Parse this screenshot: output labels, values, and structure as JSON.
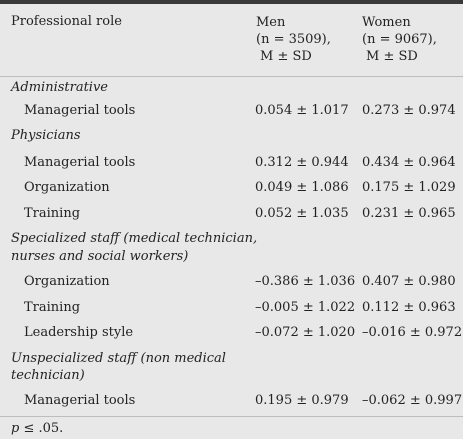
{
  "header": {
    "role": "Professional role",
    "men": {
      "label": "Men",
      "n": "(n = 3509),",
      "stat": "M ± SD"
    },
    "women": {
      "label": "Women",
      "n": "(n = 9067),",
      "stat": "M ± SD"
    }
  },
  "rows": [
    {
      "kind": "group",
      "label": "Administrative"
    },
    {
      "kind": "item",
      "label": "Managerial tools",
      "men": "0.054 ± 1.017",
      "women": "0.273 ± 0.974"
    },
    {
      "kind": "group",
      "label": "Physicians"
    },
    {
      "kind": "item",
      "label": "Managerial tools",
      "men": "0.312 ± 0.944",
      "women": "0.434 ± 0.964"
    },
    {
      "kind": "item",
      "label": "Organization",
      "men": "0.049 ± 1.086",
      "women": "0.175 ± 1.029"
    },
    {
      "kind": "item",
      "label": "Training",
      "men": "0.052 ± 1.035",
      "women": "0.231 ± 0.965"
    },
    {
      "kind": "group",
      "label": "Specialized staff (medical technician, nurses and social workers)",
      "line1": "Specialized staff (medical technician,",
      "line2": "nurses and social workers)"
    },
    {
      "kind": "item",
      "label": "Organization",
      "men": "–0.386 ± 1.036",
      "women": "0.407 ± 0.980"
    },
    {
      "kind": "item",
      "label": "Training",
      "men": "–0.005 ± 1.022",
      "women": "0.112 ± 0.963"
    },
    {
      "kind": "item",
      "label": "Leadership style",
      "men": "–0.072 ± 1.020",
      "women": "–0.016 ± 0.972"
    },
    {
      "kind": "group",
      "label": "Unspecialized staff (non medical technician)",
      "line1": "Unspecialized staff (non medical",
      "line2": "technician)"
    },
    {
      "kind": "item",
      "label": "Managerial tools",
      "men": "0.195 ± 0.979",
      "women": "–0.062 ± 0.997"
    }
  ],
  "footnote": {
    "p": "p",
    "rest": " ≤ .05."
  }
}
